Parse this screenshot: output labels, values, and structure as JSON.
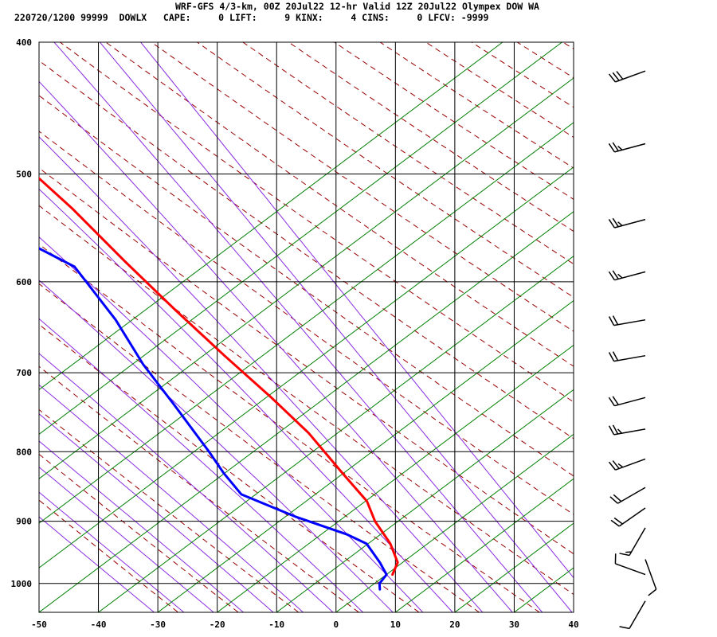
{
  "header": {
    "line1": "WRF-GFS 4/3-km, 00Z 20Jul22 12-hr Valid 12Z 20Jul22 Olympex DOW WA",
    "line2": "220720/1200 99999  DOWLX   CAPE:     0 LIFT:     9 KINX:     4 CINS:     0 LFCV: -9999"
  },
  "colors": {
    "temperature": "#ff0000",
    "dewpoint": "#0000ff",
    "dry_adiabat": "#990000",
    "moist_adiabat": "#8a2be2",
    "mixing_ratio": "#008000",
    "grid": "#000000"
  },
  "chart_data": {
    "type": "line",
    "title": "",
    "xlabel": "",
    "ylabel": "",
    "xlim": [
      -50,
      40
    ],
    "ylim": [
      1050,
      400
    ],
    "y_scale": "log",
    "grid": true,
    "x_ticks": [
      -50,
      -40,
      -30,
      -20,
      -10,
      0,
      10,
      20,
      30,
      40
    ],
    "y_ticks": [
      400,
      500,
      600,
      700,
      800,
      900,
      1000
    ],
    "series": [
      {
        "key": "temperature",
        "points": [
          [
            -21.5,
            420
          ],
          [
            -13,
            475
          ],
          [
            -7,
            530
          ],
          [
            -3,
            580
          ],
          [
            1,
            630
          ],
          [
            5,
            680
          ],
          [
            9,
            730
          ],
          [
            12,
            775
          ],
          [
            14,
            830
          ],
          [
            15.5,
            870
          ],
          [
            15,
            900
          ],
          [
            15.5,
            935
          ],
          [
            15,
            965
          ],
          [
            13,
            985
          ]
        ]
      },
      {
        "key": "dewpoint",
        "points": [
          [
            -43,
            420
          ],
          [
            -39,
            475
          ],
          [
            -33,
            505
          ],
          [
            -23,
            540
          ],
          [
            -12,
            585
          ],
          [
            -10,
            640
          ],
          [
            -9.5,
            690
          ],
          [
            -8,
            740
          ],
          [
            -6.5,
            800
          ],
          [
            -6,
            830
          ],
          [
            -5,
            860
          ],
          [
            2,
            893
          ],
          [
            9,
            920
          ],
          [
            11.5,
            935
          ],
          [
            12,
            965
          ],
          [
            12,
            985
          ],
          [
            10,
            1000
          ],
          [
            9.5,
            1010
          ]
        ]
      }
    ],
    "wind_barbs": [
      {
        "p": 420,
        "dir": 250,
        "kt": 30
      },
      {
        "p": 475,
        "dir": 255,
        "kt": 25
      },
      {
        "p": 540,
        "dir": 255,
        "kt": 25
      },
      {
        "p": 590,
        "dir": 255,
        "kt": 25
      },
      {
        "p": 640,
        "dir": 260,
        "kt": 20
      },
      {
        "p": 680,
        "dir": 260,
        "kt": 20
      },
      {
        "p": 730,
        "dir": 255,
        "kt": 20
      },
      {
        "p": 770,
        "dir": 260,
        "kt": 25
      },
      {
        "p": 810,
        "dir": 250,
        "kt": 25
      },
      {
        "p": 850,
        "dir": 240,
        "kt": 20
      },
      {
        "p": 880,
        "dir": 235,
        "kt": 20
      },
      {
        "p": 910,
        "dir": 210,
        "kt": 15
      },
      {
        "p": 960,
        "dir": 160,
        "kt": 10
      },
      {
        "p": 985,
        "dir": 290,
        "kt": 10
      },
      {
        "p": 1030,
        "dir": 210,
        "kt": 10
      }
    ]
  }
}
